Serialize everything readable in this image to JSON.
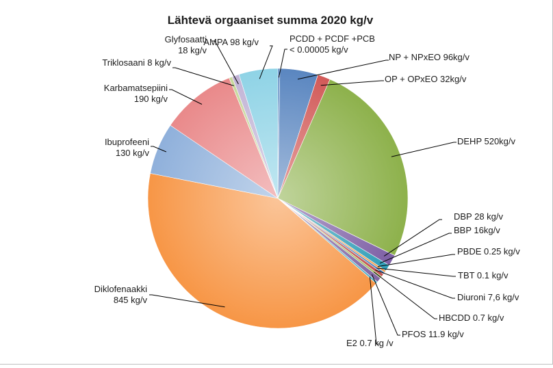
{
  "chart_data": {
    "type": "pie",
    "title": "Lähtevä orgaaniset summa 2020 kg/v",
    "slices": [
      {
        "label": "PCDD + PCDF +PCB",
        "label_line2": "< 0.00005 kg/v",
        "value": 5e-05,
        "color": "#4f81bd",
        "labelAnchor": "start"
      },
      {
        "label": "NP + NPxEO 96kg/v",
        "label_line2": "",
        "value": 96,
        "color": "#5a86c0",
        "labelAnchor": "start"
      },
      {
        "label": "OP + OPxEO 32kg/v",
        "label_line2": "",
        "value": 32,
        "color": "#d25a58",
        "labelAnchor": "start"
      },
      {
        "label": "DEHP 520kg/v",
        "label_line2": "",
        "value": 520,
        "color": "#8db14b",
        "labelAnchor": "start"
      },
      {
        "label": "DBP 28 kg/v",
        "label_line2": "",
        "value": 28,
        "color": "#7d5fa5",
        "labelAnchor": "start"
      },
      {
        "label": "BBP 16kg/v",
        "label_line2": "",
        "value": 16,
        "color": "#2f9eb8",
        "labelAnchor": "start"
      },
      {
        "label": "PBDE 0.25 kg/v",
        "label_line2": "",
        "value": 0.25,
        "color": "#f59b45",
        "labelAnchor": "start"
      },
      {
        "label": "TBT 0.1 kg/v",
        "label_line2": "",
        "value": 0.1,
        "color": "#4a7ebb",
        "labelAnchor": "start"
      },
      {
        "label": "Diuroni 7,6 kg/v",
        "label_line2": "",
        "value": 7.6,
        "color": "#c0504d",
        "labelAnchor": "start"
      },
      {
        "label": "HBCDD 0.7 kg/v",
        "label_line2": "",
        "value": 0.7,
        "color": "#9bbb59",
        "labelAnchor": "start"
      },
      {
        "label": "PFOS 11.9 kg/v",
        "label_line2": "",
        "value": 11.9,
        "color": "#8064a2",
        "labelAnchor": "start"
      },
      {
        "label": "E2 0.7 kg /v",
        "label_line2": "",
        "value": 0.7,
        "color": "#4bacc6",
        "labelAnchor": "start"
      },
      {
        "label": "Diklofenaakki",
        "label_line2": "845 kg/v",
        "value": 845,
        "color": "#f79646",
        "labelAnchor": "end"
      },
      {
        "label": "Ibuprofeeni",
        "label_line2": "130 kg/v",
        "value": 130,
        "color": "#8fb0db",
        "labelAnchor": "end"
      },
      {
        "label": "Karbamatsepiini",
        "label_line2": "190 kg/v",
        "value": 190,
        "color": "#e9898a",
        "labelAnchor": "end"
      },
      {
        "label": "Triklosaani 8 kg/v",
        "label_line2": "",
        "value": 8,
        "color": "#c6d79a",
        "labelAnchor": "end"
      },
      {
        "label": "Glyfosaatti",
        "label_line2": "18 kg/v",
        "value": 18,
        "color": "#c2b4d6",
        "labelAnchor": "end"
      },
      {
        "label": "AMPA 98 kg/v",
        "label_line2": "",
        "value": 98,
        "color": "#8fd3e6",
        "labelAnchor": "end"
      }
    ]
  }
}
